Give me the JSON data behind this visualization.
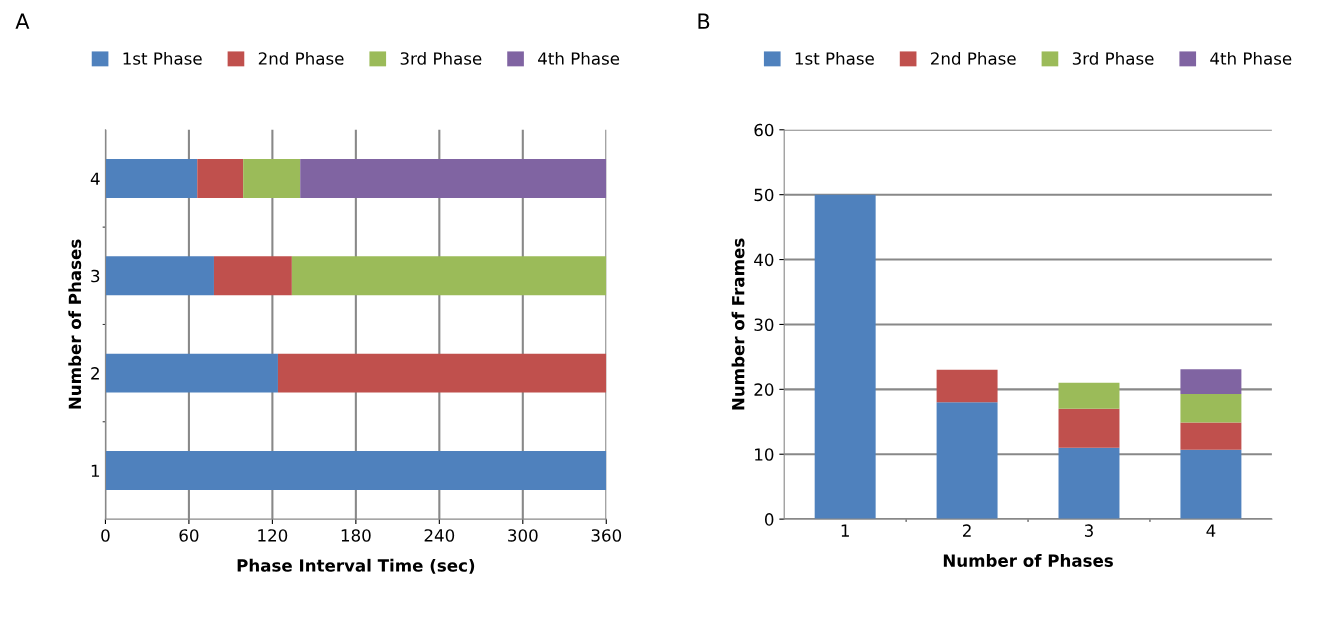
{
  "chart_data": [
    {
      "type": "bar",
      "title": "A",
      "orientation": "horizontal",
      "stacked": true,
      "xlabel": "Phase Interval Time (sec)",
      "ylabel": "Number of Phases",
      "categories": [
        "4",
        "3",
        "2",
        "1"
      ],
      "xlim": [
        0,
        360
      ],
      "xticks": [
        0,
        60,
        120,
        180,
        240,
        300,
        360
      ],
      "grid": "x",
      "legend": "top",
      "series": [
        {
          "name": "1st Phase",
          "color": "#4f81bd",
          "values": [
            66,
            78,
            124,
            360
          ]
        },
        {
          "name": "2nd Phase",
          "color": "#c0504d",
          "values": [
            33,
            56,
            236,
            null
          ]
        },
        {
          "name": "3rd Phase",
          "color": "#9bbb59",
          "values": [
            41,
            226,
            null,
            null
          ]
        },
        {
          "name": "4th Phase",
          "color": "#8064a2",
          "values": [
            220,
            null,
            null,
            null
          ]
        }
      ]
    },
    {
      "type": "bar",
      "title": "B",
      "stacked": true,
      "xlabel": "Number of Phases",
      "ylabel": "Number of Frames",
      "categories": [
        "1",
        "2",
        "3",
        "4"
      ],
      "ylim": [
        0,
        60
      ],
      "yticks": [
        0,
        10,
        20,
        30,
        40,
        50,
        60
      ],
      "grid": "y",
      "legend": "top",
      "series": [
        {
          "name": "1st Phase",
          "color": "#4f81bd",
          "values": [
            50,
            18,
            11,
            10.7
          ]
        },
        {
          "name": "2nd Phase",
          "color": "#c0504d",
          "values": [
            null,
            5,
            6,
            4.2
          ]
        },
        {
          "name": "3rd Phase",
          "color": "#9bbb59",
          "values": [
            null,
            null,
            4,
            4.4
          ]
        },
        {
          "name": "4th Phase",
          "color": "#8064a2",
          "values": [
            null,
            null,
            null,
            3.8
          ]
        }
      ]
    }
  ]
}
